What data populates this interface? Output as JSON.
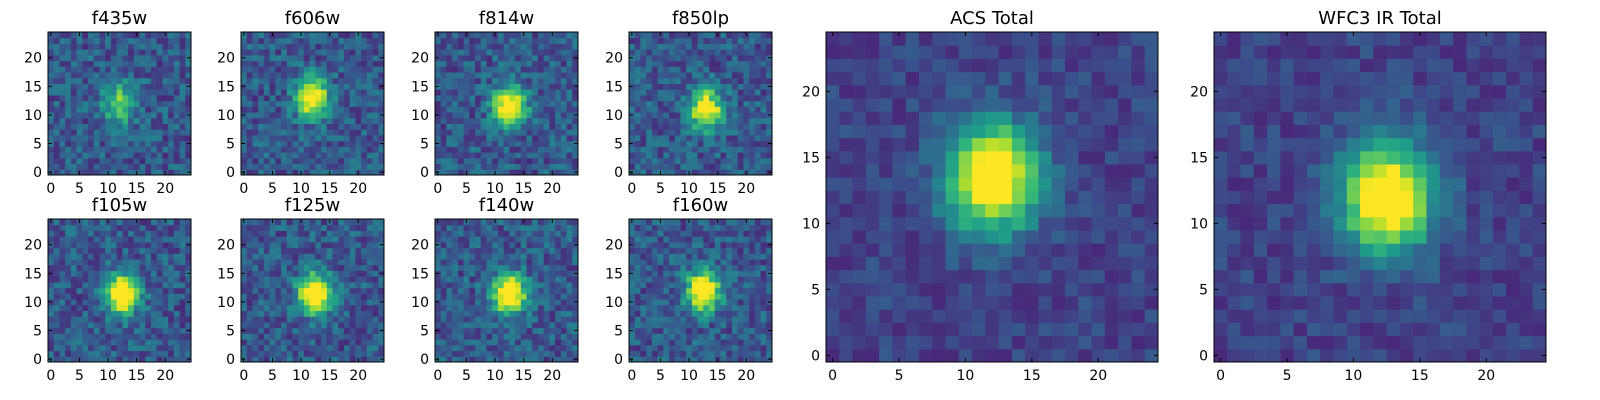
{
  "chart_data": [
    {
      "type": "heatmap",
      "title": "f435w",
      "xticks": [
        0,
        5,
        10,
        15,
        20
      ],
      "yticks": [
        0,
        5,
        10,
        15,
        20
      ],
      "xlim": [
        0,
        24
      ],
      "ylim": [
        0,
        24
      ],
      "colormap": "viridis",
      "source": {
        "x": 12,
        "y": 12,
        "peak": 0.55
      }
    },
    {
      "type": "heatmap",
      "title": "f606w",
      "xticks": [
        0,
        5,
        10,
        15,
        20
      ],
      "yticks": [
        0,
        5,
        10,
        15,
        20
      ],
      "xlim": [
        0,
        24
      ],
      "ylim": [
        0,
        24
      ],
      "colormap": "viridis",
      "source": {
        "x": 12,
        "y": 13,
        "peak": 0.85
      }
    },
    {
      "type": "heatmap",
      "title": "f814w",
      "xticks": [
        0,
        5,
        10,
        15,
        20
      ],
      "yticks": [
        0,
        5,
        10,
        15,
        20
      ],
      "xlim": [
        0,
        24
      ],
      "ylim": [
        0,
        24
      ],
      "colormap": "viridis",
      "source": {
        "x": 12.5,
        "y": 11.5,
        "peak": 0.9
      }
    },
    {
      "type": "heatmap",
      "title": "f850lp",
      "xticks": [
        0,
        5,
        10,
        15,
        20
      ],
      "yticks": [
        0,
        5,
        10,
        15,
        20
      ],
      "xlim": [
        0,
        24
      ],
      "ylim": [
        0,
        24
      ],
      "colormap": "viridis",
      "source": {
        "x": 13,
        "y": 11,
        "peak": 0.85
      }
    },
    {
      "type": "heatmap",
      "title": "f105w",
      "xticks": [
        0,
        5,
        10,
        15,
        20
      ],
      "yticks": [
        0,
        5,
        10,
        15,
        20
      ],
      "xlim": [
        0,
        24
      ],
      "ylim": [
        0,
        24
      ],
      "colormap": "viridis",
      "source": {
        "x": 12.5,
        "y": 11.5,
        "peak": 0.95
      }
    },
    {
      "type": "heatmap",
      "title": "f125w",
      "xticks": [
        0,
        5,
        10,
        15,
        20
      ],
      "yticks": [
        0,
        5,
        10,
        15,
        20
      ],
      "xlim": [
        0,
        24
      ],
      "ylim": [
        0,
        24
      ],
      "colormap": "viridis",
      "source": {
        "x": 12.5,
        "y": 11.5,
        "peak": 0.95
      }
    },
    {
      "type": "heatmap",
      "title": "f140w",
      "xticks": [
        0,
        5,
        10,
        15,
        20
      ],
      "yticks": [
        0,
        5,
        10,
        15,
        20
      ],
      "xlim": [
        0,
        24
      ],
      "ylim": [
        0,
        24
      ],
      "colormap": "viridis",
      "source": {
        "x": 12.5,
        "y": 11.5,
        "peak": 0.95
      }
    },
    {
      "type": "heatmap",
      "title": "f160w",
      "xticks": [
        0,
        5,
        10,
        15,
        20
      ],
      "yticks": [
        0,
        5,
        10,
        15,
        20
      ],
      "xlim": [
        0,
        24
      ],
      "ylim": [
        0,
        24
      ],
      "colormap": "viridis",
      "source": {
        "x": 12.5,
        "y": 12,
        "peak": 0.95
      }
    },
    {
      "type": "heatmap",
      "title": "ACS Total",
      "xticks": [
        0,
        5,
        10,
        15,
        20
      ],
      "yticks": [
        0,
        5,
        10,
        15,
        20
      ],
      "xlim": [
        0,
        24
      ],
      "ylim": [
        0,
        24
      ],
      "colormap": "viridis",
      "source": {
        "x": 12,
        "y": 13.5,
        "peak": 1.0
      }
    },
    {
      "type": "heatmap",
      "title": "WFC3 IR Total",
      "xticks": [
        0,
        5,
        10,
        15,
        20
      ],
      "yticks": [
        0,
        5,
        10,
        15,
        20
      ],
      "xlim": [
        0,
        24
      ],
      "ylim": [
        0,
        24
      ],
      "colormap": "viridis",
      "source": {
        "x": 12.5,
        "y": 12,
        "peak": 1.0
      }
    }
  ]
}
